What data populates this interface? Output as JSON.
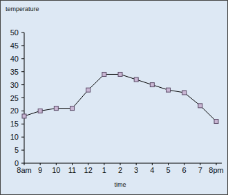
{
  "chart_data": {
    "type": "line",
    "x_label": "time",
    "y_label": "temperature",
    "categories": [
      "8am",
      "9",
      "10",
      "11",
      "12",
      "1",
      "2",
      "3",
      "4",
      "5",
      "6",
      "7",
      "8pm"
    ],
    "values": [
      18,
      20,
      21,
      21,
      28,
      34,
      34,
      32,
      30,
      28,
      27,
      22,
      16
    ],
    "color": "#000000",
    "marker": "square",
    "ylim": [
      0,
      50
    ],
    "yticks": [
      0,
      5,
      10,
      15,
      20,
      25,
      30,
      35,
      40,
      45,
      50
    ],
    "grid": false
  }
}
